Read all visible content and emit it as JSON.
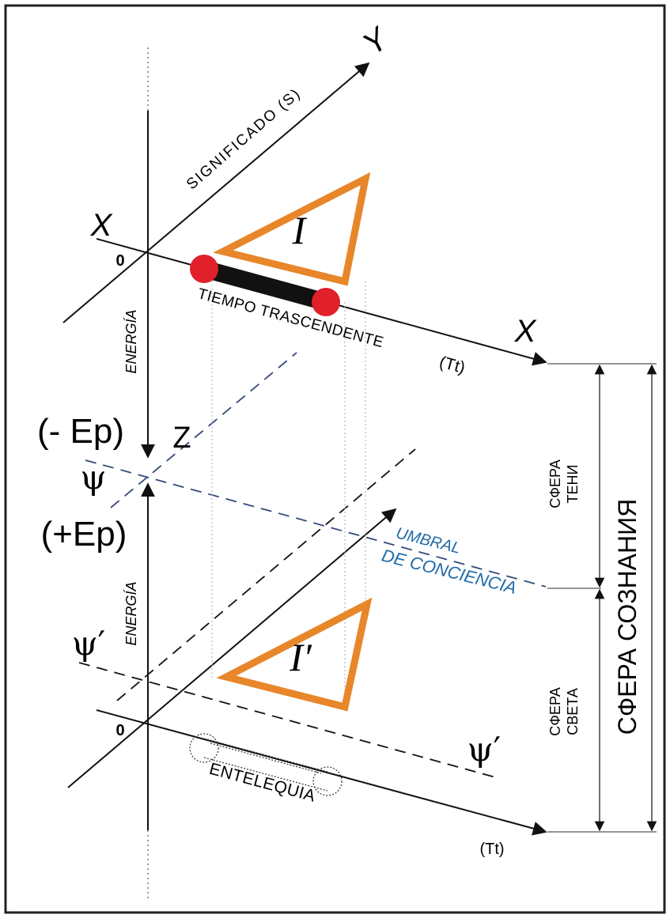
{
  "labels": {
    "x_top_left": "X",
    "x_top_right": "X",
    "y_axis": "Y",
    "origin_top": "0",
    "origin_bottom": "0",
    "z_axis": "Z",
    "significado": "SIGNIFICADO (S)",
    "energia_top": "ENERGÍA",
    "energia_bottom": "ENERGÍA",
    "tiempo": "TIEMPO TRASCENDENTE",
    "tt_top": "(Tt)",
    "tt_bottom": "(Tt)",
    "minus_ep": "(- Ep)",
    "plus_ep": "(+Ep)",
    "psi": "ψ",
    "psi_prime_left": "ψ′",
    "psi_prime_right": "ψ′",
    "umbral_line1": "UMBRAL",
    "umbral_line2": "DE CONCIENCIA",
    "triangle_top": "I",
    "triangle_bottom": "I′",
    "entelequia": "ENTELEQUIA",
    "sfera_teni_1": "СФЕРА",
    "sfera_teni_2": "ТЕНИ",
    "sfera_sveta_1": "СФЕРА",
    "sfera_sveta_2": "СВЕТА",
    "sfera_soznaniya": "СФЕРА СОЗНАНИЯ"
  },
  "colors": {
    "triangle": "#e8862a",
    "dot": "#e0202a",
    "bar": "#111111",
    "umbral_text": "#1f6aa8",
    "dashed_blue": "#34497a",
    "axis": "#111111"
  }
}
